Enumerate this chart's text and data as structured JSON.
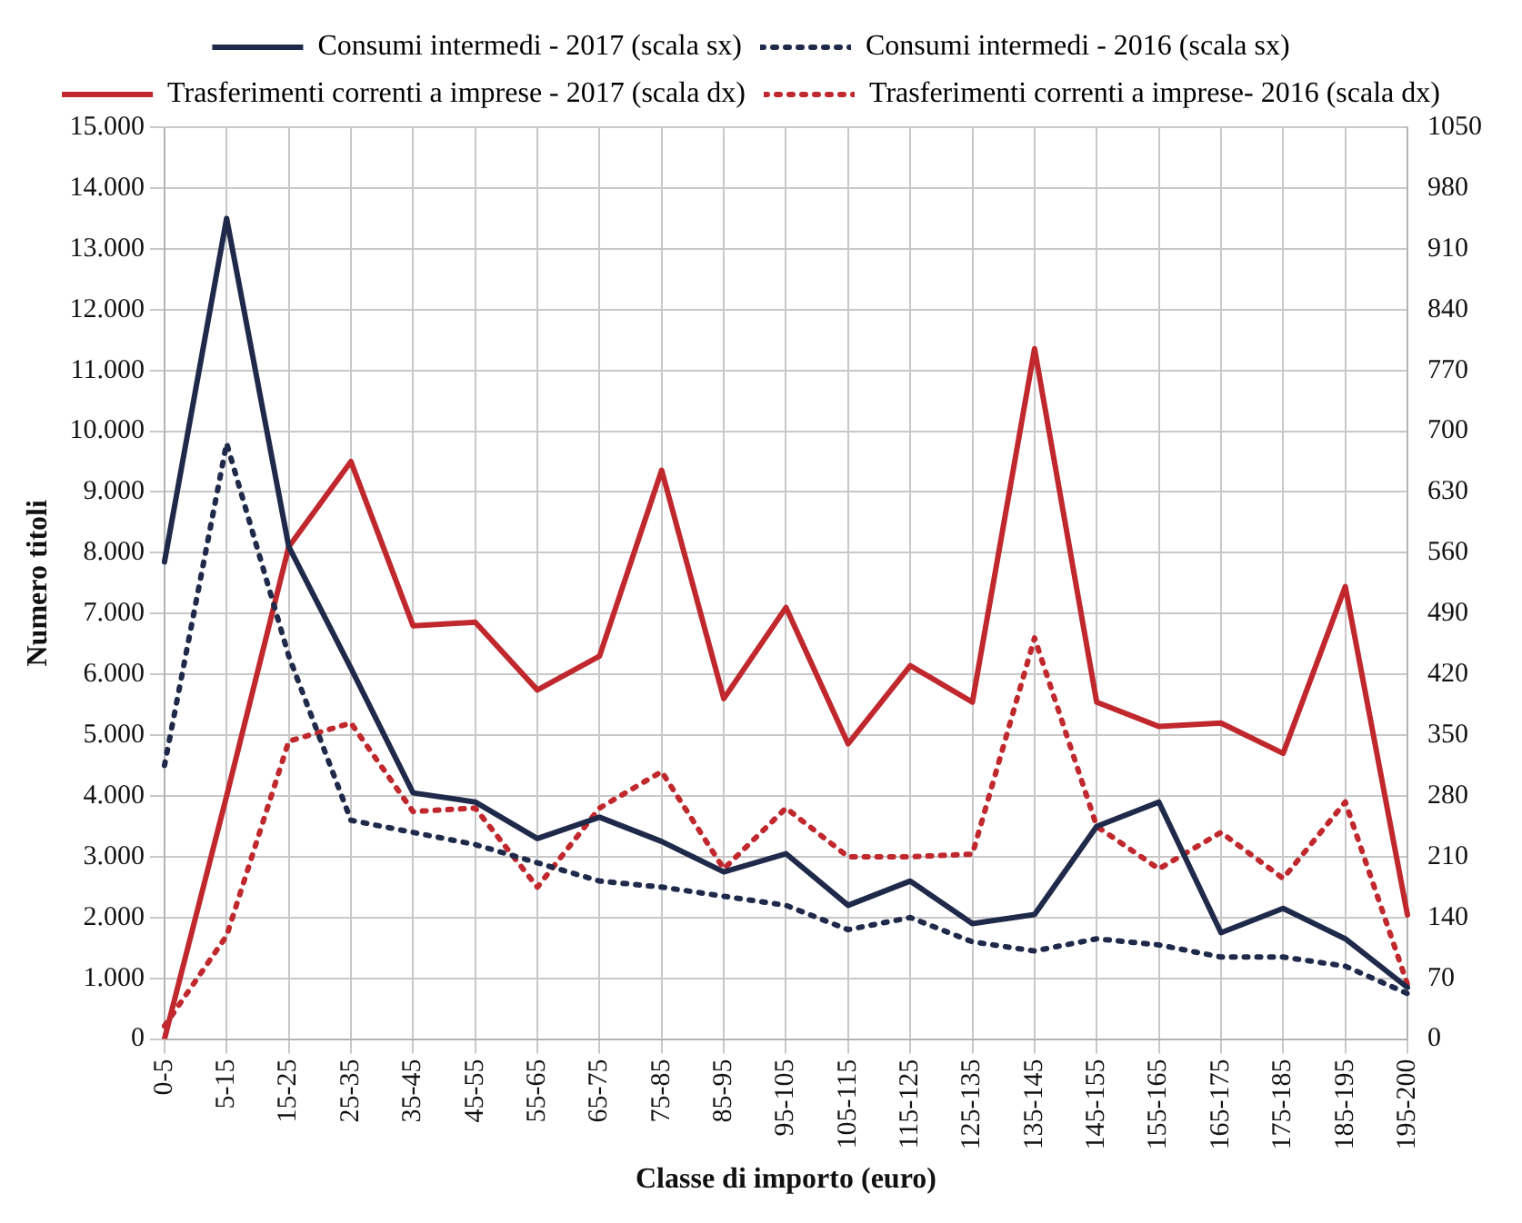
{
  "chart_data": {
    "type": "line",
    "xlabel": "Classe di importo (euro)",
    "ylabel": "Numero titoli",
    "categories": [
      "0-5",
      "5-15",
      "15-25",
      "25-35",
      "35-45",
      "45-55",
      "55-65",
      "65-75",
      "75-85",
      "85-95",
      "95-105",
      "105-115",
      "115-125",
      "125-135",
      "135-145",
      "145-155",
      "155-165",
      "165-175",
      "175-185",
      "185-195",
      "195-200"
    ],
    "series": [
      {
        "name": "Consumi intermedi - 2017 (scala sx)",
        "color": "#1f2a4a",
        "line_style": "solid",
        "values": [
          7850,
          13500,
          8100,
          6100,
          4050,
          3900,
          3300,
          3650,
          3250,
          2750,
          3050,
          2200,
          2600,
          1900,
          2050,
          3500,
          3900,
          1750,
          2150,
          1650,
          850
        ]
      },
      {
        "name": "Consumi intermedi - 2016 (scala sx)",
        "color": "#1f2a4a",
        "line_style": "dotted",
        "values": [
          4500,
          9800,
          6300,
          3600,
          3400,
          3200,
          2900,
          2600,
          2500,
          2350,
          2200,
          1800,
          2000,
          1600,
          1450,
          1650,
          1550,
          1350,
          1350,
          1200,
          750
        ]
      },
      {
        "name": "Trasferimenti correnti a imprese - 2017 (scala dx)",
        "color": "#c0282d",
        "line_style": "solid",
        "axis": "y2",
        "values": [
          0,
          280,
          567,
          665,
          476,
          480,
          402,
          441,
          655,
          392,
          497,
          340,
          430,
          388,
          795,
          388,
          360,
          364,
          329,
          521,
          143
        ]
      },
      {
        "name": "Trasferimenti correnti a imprese- 2016 (scala dx)",
        "color": "#c0282d",
        "line_style": "dotted",
        "axis": "y2",
        "values": [
          15,
          119,
          343,
          364,
          262,
          266,
          175,
          266,
          308,
          196,
          266,
          210,
          210,
          213,
          462,
          245,
          196,
          238,
          185,
          273,
          63
        ]
      }
    ],
    "ylim": [
      0,
      15000
    ],
    "yticks": [
      0,
      {
        "value": 1000,
        "label": "1.000"
      },
      {
        "value": 2000,
        "label": "2.000"
      },
      {
        "value": 3000,
        "label": "3.000"
      },
      {
        "value": 4000,
        "label": "4.000"
      },
      {
        "value": 5000,
        "label": "5.000"
      },
      {
        "value": 6000,
        "label": "6.000"
      },
      {
        "value": 7000,
        "label": "7.000"
      },
      {
        "value": 8000,
        "label": "8.000"
      },
      {
        "value": 9000,
        "label": "9.000"
      },
      {
        "value": 10000,
        "label": "10.000"
      },
      {
        "value": 11000,
        "label": "11.000"
      },
      {
        "value": 12000,
        "label": "12.000"
      },
      {
        "value": 13000,
        "label": "13.000"
      },
      {
        "value": 14000,
        "label": "14.000"
      },
      {
        "value": 15000,
        "label": "15.000"
      }
    ],
    "y2lim": [
      0,
      1050
    ],
    "y2ticks": [
      0,
      70,
      140,
      210,
      280,
      350,
      420,
      490,
      560,
      630,
      700,
      770,
      840,
      910,
      980,
      1050
    ],
    "grid": true,
    "legend": "top",
    "marker": "none"
  }
}
